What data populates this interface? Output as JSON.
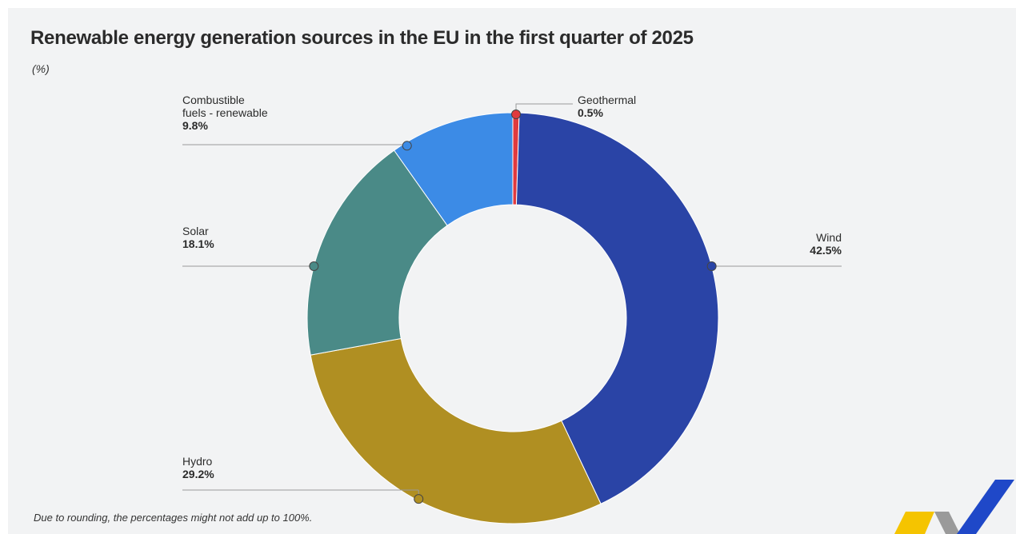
{
  "chart_data": {
    "type": "pie",
    "title": "Renewable energy generation sources in the EU in the first quarter of  2025",
    "subtitle": "(%)",
    "footnote": "Due to rounding, the percentages might not add up to 100%.",
    "donut": true,
    "slices": [
      {
        "id": "geothermal",
        "label": [
          "Geothermal"
        ],
        "value": 0.5,
        "value_text": "0.5%",
        "color": "#e03a3e"
      },
      {
        "id": "wind",
        "label": [
          "Wind"
        ],
        "value": 42.5,
        "value_text": "42.5%",
        "color": "#2a44a6"
      },
      {
        "id": "hydro",
        "label": [
          "Hydro"
        ],
        "value": 29.2,
        "value_text": "29.2%",
        "color": "#b08f22"
      },
      {
        "id": "solar",
        "label": [
          "Solar"
        ],
        "value": 18.1,
        "value_text": "18.1%",
        "color": "#4a8a87"
      },
      {
        "id": "combustible",
        "label": [
          "Combustible",
          "fuels - renewable"
        ],
        "value": 9.8,
        "value_text": "9.8%",
        "color": "#3c8be6"
      }
    ]
  }
}
